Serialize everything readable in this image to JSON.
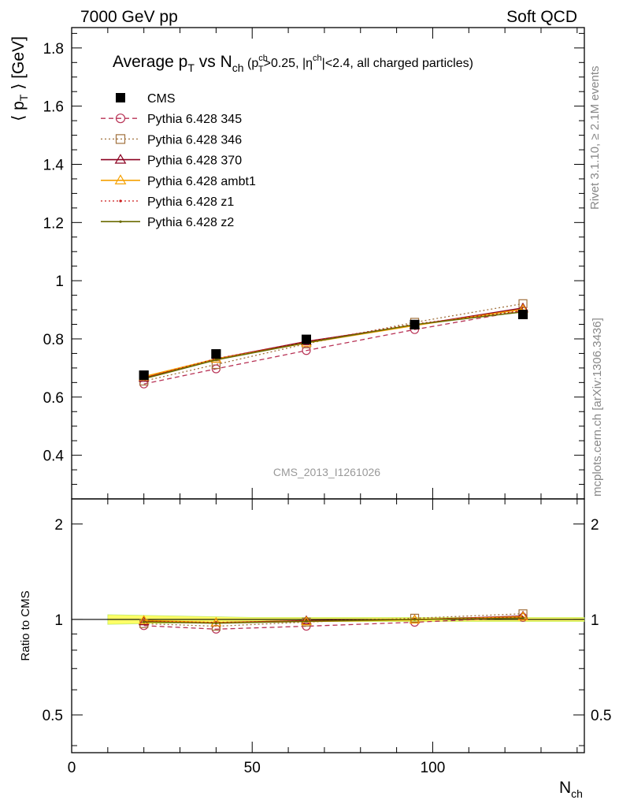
{
  "header": {
    "left": "7000 GeV pp",
    "right": "Soft QCD"
  },
  "title": {
    "main_a": "Average p",
    "main_sub1": "T",
    "main_b": " vs N",
    "main_sub2": "ch",
    "cut_a": " (p",
    "cut_sup1": "ch",
    "cut_sub1": "T",
    "cut_b": ">0.25, |η",
    "cut_sup2": "ch",
    "cut_c": "|<2.4, all charged particles)"
  },
  "side_labels": {
    "rivet": "Rivet 3.1.10, ≥ 2.1M events",
    "mcplots": "mcplots.cern.ch [arXiv:1306.3436]"
  },
  "analysis_id": "CMS_2013_I1261026",
  "chart_data": [
    {
      "type": "scatter",
      "panel": "main",
      "ylabel": "⟨ p_T ⟩ [GeV]",
      "ylabel_parts": {
        "a": "⟨ p",
        "sub": "T",
        "b": " ⟩ [GeV]"
      },
      "xlim": [
        0,
        142
      ],
      "ylim": [
        0.25,
        1.87
      ],
      "x_ticks": [
        0,
        50,
        100
      ],
      "y_ticks": [
        0.4,
        0.6,
        0.8,
        1,
        1.2,
        1.4,
        1.6,
        1.8
      ],
      "y_tick_labels": [
        "0.4",
        "0.6",
        "0.8",
        "1",
        "1.2",
        "1.4",
        "1.6",
        "1.8"
      ],
      "grid": false,
      "legend_position": "top-left",
      "series": [
        {
          "name": "CMS",
          "color": "#000000",
          "style": "data",
          "marker": "filled-square",
          "x": [
            20,
            40,
            65,
            95,
            125
          ],
          "y": [
            0.675,
            0.748,
            0.798,
            0.849,
            0.884
          ]
        },
        {
          "name": "Pythia 6.428 345",
          "color": "#b83255",
          "style": "dash",
          "marker": "open-circle",
          "x": [
            20,
            40,
            65,
            95,
            125
          ],
          "y": [
            0.645,
            0.697,
            0.76,
            0.832,
            0.897
          ]
        },
        {
          "name": "Pythia 6.428 346",
          "color": "#a0703c",
          "style": "dot",
          "marker": "open-square",
          "x": [
            20,
            40,
            65,
            95,
            125
          ],
          "y": [
            0.655,
            0.712,
            0.783,
            0.857,
            0.921
          ]
        },
        {
          "name": "Pythia 6.428 370",
          "color": "#8b0020",
          "style": "solid",
          "marker": "open-triangle",
          "x": [
            20,
            40,
            65,
            95,
            125
          ],
          "y": [
            0.665,
            0.731,
            0.791,
            0.847,
            0.906
          ]
        },
        {
          "name": "Pythia 6.428 ambt1",
          "color": "#f5a000",
          "style": "solid",
          "marker": "open-triangle",
          "x": [
            20,
            40,
            65,
            95,
            125
          ],
          "y": [
            0.67,
            0.731,
            0.786,
            0.846,
            0.902
          ]
        },
        {
          "name": "Pythia 6.428 z1",
          "color": "#cc1a1a",
          "style": "dot",
          "marker": "dot",
          "x": [
            20,
            40,
            65,
            95,
            125
          ],
          "y": [
            0.666,
            0.732,
            0.79,
            0.851,
            0.897
          ]
        },
        {
          "name": "Pythia 6.428 z2",
          "color": "#6b6b00",
          "style": "solid",
          "marker": "dot",
          "x": [
            20,
            40,
            65,
            95,
            125
          ],
          "y": [
            0.663,
            0.728,
            0.787,
            0.849,
            0.893
          ]
        }
      ]
    },
    {
      "type": "scatter",
      "panel": "ratio",
      "xlabel": "N_ch",
      "xlabel_parts": {
        "a": "N",
        "sub": "ch"
      },
      "ylabel": "Ratio to CMS",
      "xlim": [
        0,
        142
      ],
      "ylim": [
        0.38,
        2.4
      ],
      "log_y": true,
      "x_ticks": [
        0,
        50,
        100
      ],
      "x_tick_labels": [
        "0",
        "50",
        "100"
      ],
      "y_ticks": [
        0.5,
        1,
        2
      ],
      "y_tick_labels": [
        "0.5",
        "1",
        "2"
      ],
      "band": {
        "x": [
          10,
          30,
          50,
          80,
          110,
          142
        ],
        "lo": [
          0.965,
          0.975,
          0.985,
          0.985,
          0.985,
          0.985
        ],
        "hi": [
          1.035,
          1.025,
          1.015,
          1.015,
          1.015,
          1.015
        ]
      },
      "band_color": "#ffff66",
      "band_edge_color": "#99dd44",
      "series": [
        {
          "name": "Pythia 6.428 345",
          "color": "#b83255",
          "style": "dash",
          "marker": "open-circle",
          "x": [
            20,
            40,
            65,
            95,
            125
          ],
          "y": [
            0.956,
            0.932,
            0.952,
            0.98,
            1.015
          ]
        },
        {
          "name": "Pythia 6.428 346",
          "color": "#a0703c",
          "style": "dot",
          "marker": "open-square",
          "x": [
            20,
            40,
            65,
            95,
            125
          ],
          "y": [
            0.97,
            0.952,
            0.981,
            1.009,
            1.042
          ]
        },
        {
          "name": "Pythia 6.428 370",
          "color": "#8b0020",
          "style": "solid",
          "marker": "open-triangle",
          "x": [
            20,
            40,
            65,
            95,
            125
          ],
          "y": [
            0.985,
            0.977,
            0.991,
            0.998,
            1.025
          ]
        },
        {
          "name": "Pythia 6.428 ambt1",
          "color": "#f5a000",
          "style": "solid",
          "marker": "open-triangle",
          "x": [
            20,
            40,
            65,
            95,
            125
          ],
          "y": [
            0.993,
            0.977,
            0.985,
            0.997,
            1.02
          ]
        },
        {
          "name": "Pythia 6.428 z1",
          "color": "#cc1a1a",
          "style": "dot",
          "marker": "dot",
          "x": [
            20,
            40,
            65,
            95,
            125
          ],
          "y": [
            0.987,
            0.979,
            0.99,
            1.002,
            1.015
          ]
        },
        {
          "name": "Pythia 6.428 z2",
          "color": "#6b6b00",
          "style": "solid",
          "marker": "dot",
          "x": [
            20,
            40,
            65,
            95,
            125
          ],
          "y": [
            0.982,
            0.973,
            0.986,
            1.0,
            1.01
          ]
        }
      ]
    }
  ]
}
